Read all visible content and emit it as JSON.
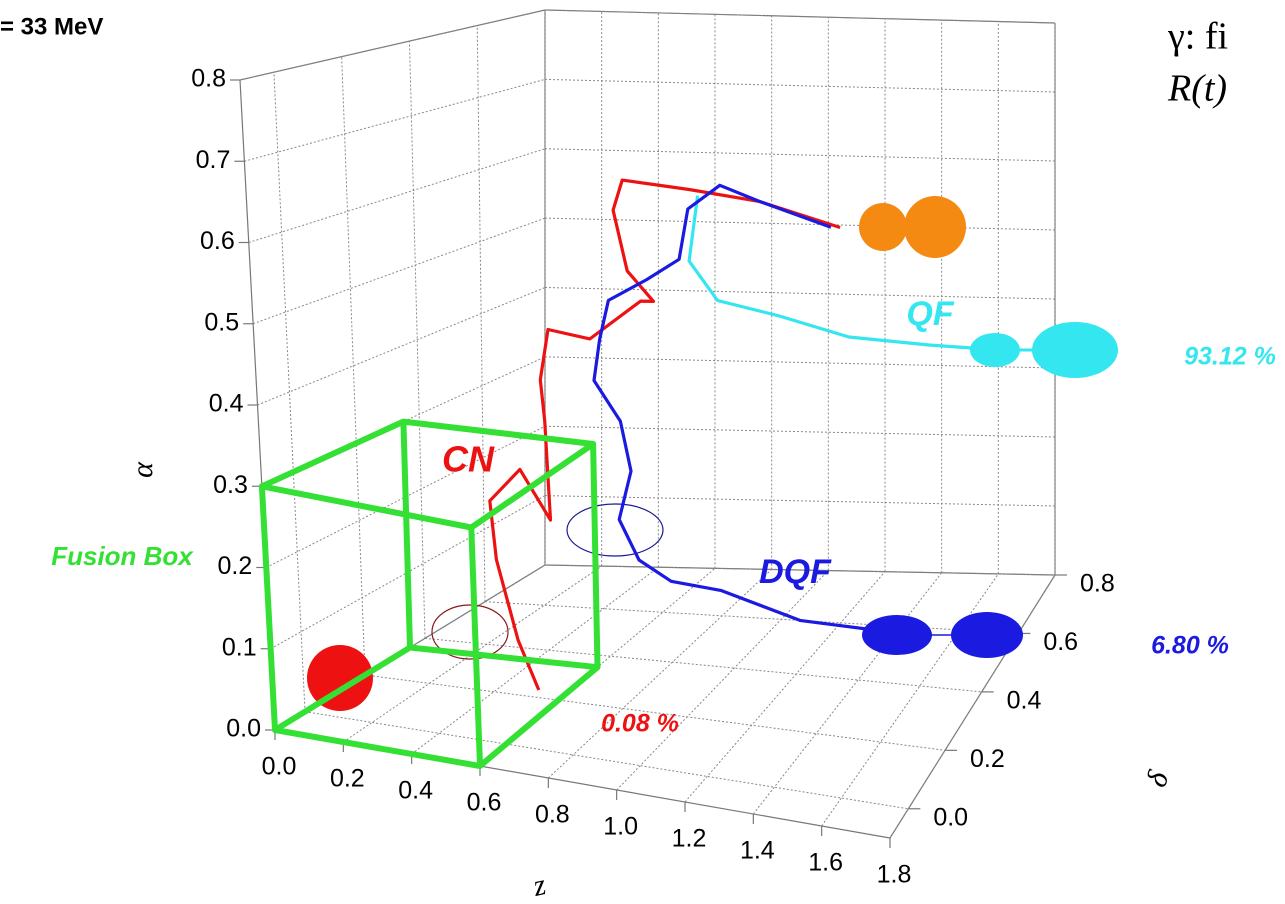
{
  "chart_data": {
    "type": "line3d",
    "title": "= 33 MeV",
    "side_notes": [
      "γ: fi",
      "R(t)"
    ],
    "xlabel": "z",
    "ylabel": "δ",
    "zlabel": "α",
    "xlim": [
      0,
      1.8
    ],
    "ylim": [
      -0.1,
      0.8
    ],
    "zlim": [
      0,
      0.8
    ],
    "xticks": [
      {
        "value": 0,
        "label": "0.0"
      },
      0.2,
      0.4,
      0.6,
      0.8,
      {
        "value": 1,
        "label": "1.0"
      },
      1.2,
      1.4,
      1.6,
      1.8
    ],
    "yticks": [
      {
        "value": 0,
        "label": "0.0"
      },
      0.2,
      0.4,
      0.6,
      0.8
    ],
    "zticks": [
      {
        "value": 0,
        "label": "0.0"
      },
      0.1,
      0.2,
      0.3,
      0.4,
      0.5,
      0.6,
      0.7,
      0.8
    ],
    "grid": true,
    "fusion_box": {
      "label": "Fusion Box",
      "color": "#33e033",
      "x": [
        0,
        0.6
      ],
      "y": [
        -0.1,
        0.35
      ],
      "z": [
        0,
        0.3
      ]
    },
    "series": [
      {
        "name": "CN",
        "fraction": "0.08 %",
        "color": "#ee1111",
        "x": [
          0.54,
          0.48,
          0.42,
          0.405,
          0.5,
          0.59,
          0.58,
          0.57,
          0.51,
          0.64,
          0.8,
          0.84,
          0.76,
          0.72,
          0.75,
          0.79,
          1.02,
          1.28
        ],
        "y": [
          0.2,
          0.2,
          0.2,
          0.2,
          0.2,
          0.2,
          0.2,
          0.2,
          0.3,
          0.3,
          0.3,
          0.3,
          0.3,
          0.3,
          0.3,
          0.5,
          0.5,
          0.5
        ],
        "z": [
          0.01,
          0.072,
          0.174,
          0.25,
          0.297,
          0.236,
          0.366,
          0.419,
          0.46,
          0.455,
          0.515,
          0.517,
          0.553,
          0.632,
          0.674,
          0.62,
          0.613,
          0.588
        ]
      },
      {
        "name": "QF",
        "fraction": "93.12 %",
        "color": "#33e6f0",
        "x": [
          0.86,
          0.83,
          0.92,
          1.08,
          1.27,
          1.5,
          1.65
        ],
        "y": [
          0.45,
          0.45,
          0.45,
          0.5,
          0.55,
          0.6,
          0.6
        ],
        "z": [
          0.626,
          0.535,
          0.485,
          0.457,
          0.42,
          0.4,
          0.4
        ]
      },
      {
        "name": "DQF",
        "fraction": "6.80 %",
        "color": "#1a1ae0",
        "x": [
          1.25,
          1.02,
          0.89,
          0.87,
          0.84,
          0.82,
          0.7,
          0.67,
          0.65,
          0.73,
          0.76,
          0.72,
          0.78,
          0.8,
          0.92,
          1.14,
          1.44
        ],
        "y": [
          0.5,
          0.5,
          0.5,
          0.4,
          0.4,
          0.3,
          0.3,
          0.3,
          0.3,
          0.3,
          0.3,
          0.3,
          0.3,
          0.4,
          0.45,
          0.5,
          0.55
        ],
        "z": [
          0.587,
          0.613,
          0.63,
          0.62,
          0.55,
          0.545,
          0.51,
          0.456,
          0.4,
          0.35,
          0.285,
          0.218,
          0.167,
          0.11,
          0.087,
          0.037,
          0.01
        ]
      }
    ]
  }
}
